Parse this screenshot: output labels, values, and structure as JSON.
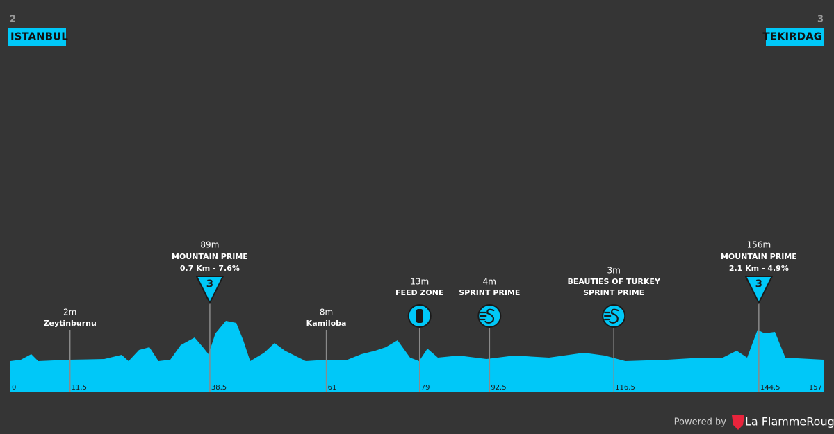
{
  "start": {
    "number": "2",
    "name": "ISTANBUL"
  },
  "finish": {
    "number": "3",
    "name": "TEKIRDAG"
  },
  "distance": {
    "start": 0,
    "end": 157
  },
  "waypoints": [
    {
      "km": 11.5,
      "altitude": "2m",
      "lines": [
        "Zeytinburnu"
      ]
    },
    {
      "km": 38.5,
      "altitude": "89m",
      "lines": [
        "MOUNTAIN PRIME",
        "0.7 Km - 7.6%"
      ],
      "icon": "climb",
      "category": "3"
    },
    {
      "km": 61,
      "altitude": "8m",
      "lines": [
        "Kamiloba"
      ]
    },
    {
      "km": 79,
      "altitude": "13m",
      "lines": [
        "FEED ZONE"
      ],
      "icon": "feed"
    },
    {
      "km": 92.5,
      "altitude": "4m",
      "lines": [
        "SPRINT PRIME"
      ],
      "icon": "sprint"
    },
    {
      "km": 116.5,
      "altitude": "3m",
      "lines": [
        "BEAUTIES OF TURKEY",
        "SPRINT PRIME"
      ],
      "icon": "sprint"
    },
    {
      "km": 144.5,
      "altitude": "156m",
      "lines": [
        "MOUNTAIN PRIME",
        "2.1 Km - 4.9%"
      ],
      "icon": "climb",
      "category": "3"
    }
  ],
  "footer": {
    "powered": "Powered by",
    "brand": "La FlammeRouge"
  }
}
